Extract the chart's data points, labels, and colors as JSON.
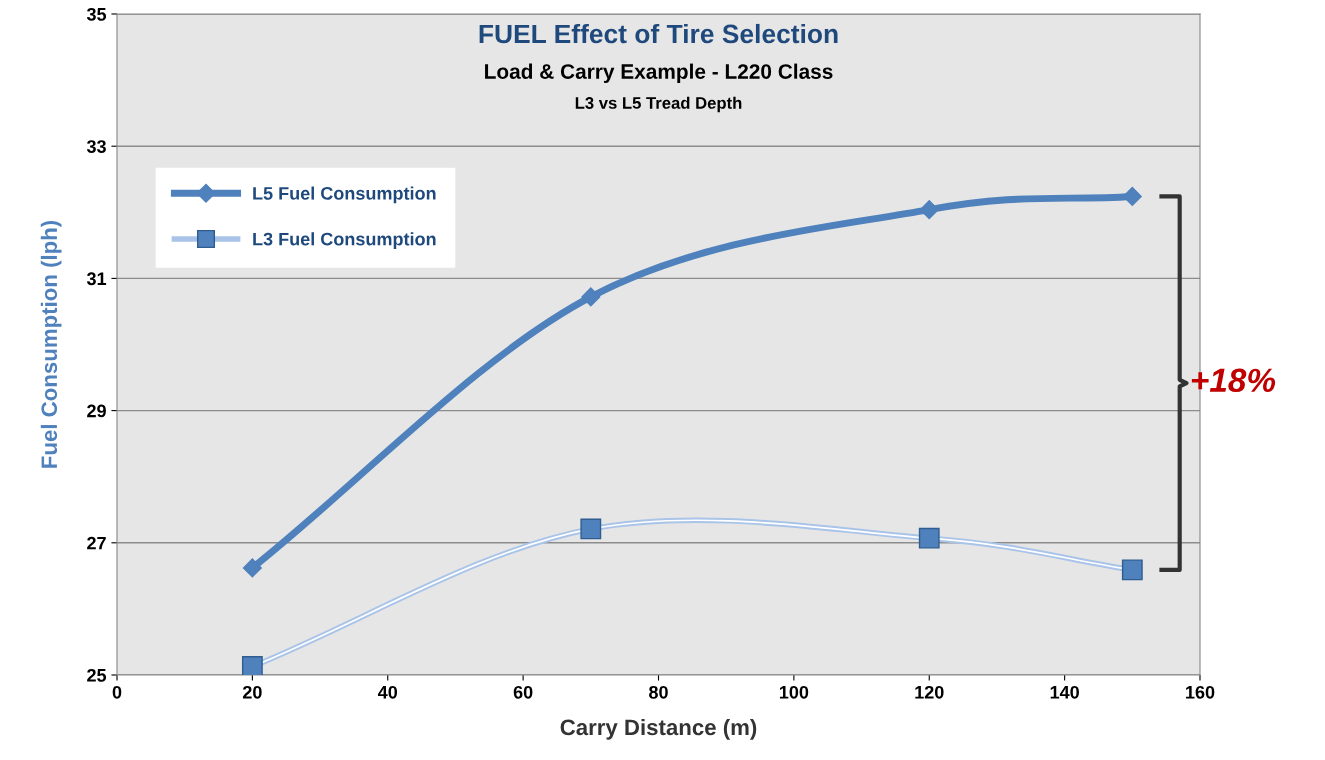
{
  "chart_data": {
    "type": "line",
    "title": "FUEL Effect of Tire Selection",
    "subtitle": "Load & Carry Example - L220 Class",
    "xlabel": "Carry Distance (m)",
    "ylabel": "Fuel Consumption (lph)",
    "x": [
      20,
      70,
      120,
      150
    ],
    "series": [
      {
        "name": "L5 Fuel Consumption",
        "color": "#4f81bd",
        "marker": "diamond",
        "values": [
          26.62,
          30.72,
          32.04,
          32.24
        ]
      },
      {
        "name": "L3 Fuel Consumption",
        "color": "#a9c4e8",
        "marker": "square",
        "values": [
          25.13,
          27.21,
          27.07,
          26.59
        ]
      }
    ],
    "xlim": [
      0,
      160
    ],
    "xticks": [
      0,
      20,
      40,
      60,
      80,
      100,
      120,
      140,
      160
    ],
    "ylim": [
      25,
      35
    ],
    "yticks": [
      25,
      27,
      29,
      31,
      33,
      35
    ],
    "grid": "y",
    "legend": "top left",
    "annotations": [
      "L3 vs L5 Tread Depth",
      "+18%"
    ]
  }
}
